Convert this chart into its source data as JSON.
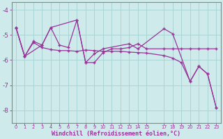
{
  "xlabel": "Windchill (Refroidissement éolien,°C)",
  "ylabel": "",
  "bg_color": "#ceeaea",
  "line_color": "#993399",
  "grid_color": "#aad4d4",
  "axis_color": "#888888",
  "xlabel_color": "#993399",
  "tick_color": "#993399",
  "xlim": [
    -0.5,
    23.5
  ],
  "ylim": [
    -8.5,
    -3.7
  ],
  "yticks": [
    -8,
    -7,
    -6,
    -5,
    -4
  ],
  "xticks": [
    0,
    1,
    2,
    3,
    4,
    5,
    6,
    7,
    8,
    9,
    10,
    11,
    12,
    13,
    14,
    15,
    17,
    18,
    19,
    20,
    21,
    22,
    23
  ],
  "xtick_labels": [
    "0",
    "1",
    "2",
    "3",
    "4",
    "5",
    "6",
    "7",
    "8",
    "9",
    "10",
    "11",
    "12",
    "13",
    "14",
    "15",
    "17",
    "18",
    "19",
    "20",
    "21",
    "22",
    "23"
  ],
  "series1_x": [
    0,
    1,
    2,
    3,
    4,
    5,
    6,
    7,
    8,
    9,
    10,
    11,
    12,
    13,
    14,
    15,
    17,
    18,
    19,
    20,
    21,
    22,
    23
  ],
  "series1_y": [
    -4.7,
    -5.85,
    -5.25,
    -5.4,
    -4.7,
    -5.4,
    -5.5,
    -4.4,
    -6.1,
    -6.1,
    -5.7,
    -5.55,
    -5.55,
    -5.5,
    -5.35,
    -5.55,
    -5.55,
    -5.55,
    -5.55,
    -5.55,
    -5.55,
    -5.55,
    -5.55
  ],
  "series2_x": [
    0,
    1,
    3,
    4,
    7,
    8,
    9,
    10,
    13,
    14,
    17,
    18,
    20,
    21,
    22,
    23
  ],
  "series2_y": [
    -4.7,
    -5.85,
    -5.4,
    -4.7,
    -4.4,
    -6.1,
    -5.75,
    -5.55,
    -5.35,
    -5.55,
    -4.75,
    -4.95,
    -6.85,
    -6.25,
    -6.55,
    -7.9
  ],
  "series3_x": [
    0,
    1,
    2,
    3,
    4,
    5,
    6,
    7,
    8,
    9,
    10,
    11,
    12,
    13,
    14,
    15,
    17,
    18,
    19,
    20,
    21,
    22,
    23
  ],
  "series3_y": [
    -4.7,
    -5.85,
    -5.3,
    -5.5,
    -5.58,
    -5.62,
    -5.62,
    -5.65,
    -5.6,
    -5.62,
    -5.65,
    -5.65,
    -5.65,
    -5.68,
    -5.7,
    -5.72,
    -5.82,
    -5.92,
    -6.1,
    -6.85,
    -6.25,
    -6.55,
    -7.9
  ]
}
